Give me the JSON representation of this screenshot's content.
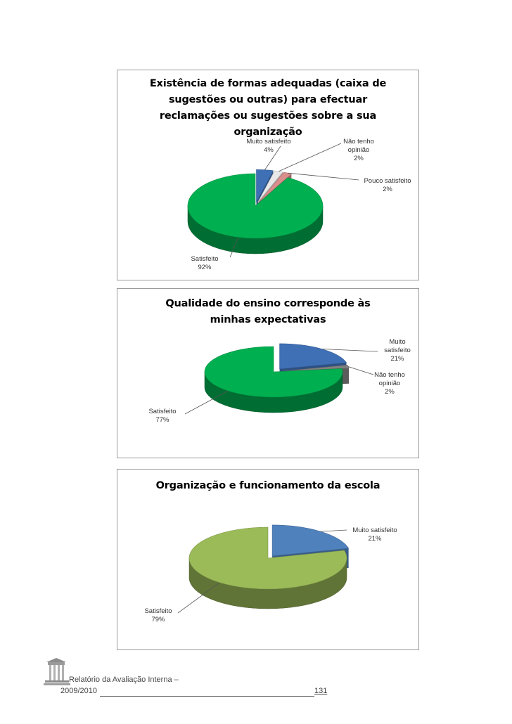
{
  "chart_data": [
    {
      "type": "pie",
      "title": "Existência de formas adequadas (caixa de sugestões ou outras) para efectuar reclamações ou sugestões sobre a sua organização",
      "slices": [
        {
          "name": "Muito satisfeito",
          "value": 4,
          "label": "4%",
          "color": "#3f6fb5"
        },
        {
          "name": "Não tenho opinião",
          "value": 2,
          "label": "2%",
          "color": "#e8e8e8"
        },
        {
          "name": "Pouco satisfeito",
          "value": 2,
          "label": "2%",
          "color": "#d98e8c"
        },
        {
          "name": "Satisfeito",
          "value": 92,
          "label": "92%",
          "color": "#00b050"
        }
      ]
    },
    {
      "type": "pie",
      "title": "Qualidade do ensino corresponde às minhas expectativas",
      "slices": [
        {
          "name": "Muito satisfeito",
          "value": 21,
          "label": "21%",
          "color": "#3f6fb5"
        },
        {
          "name": "Não tenho opinião",
          "value": 2,
          "label": "2%",
          "color": "#808080"
        },
        {
          "name": "Satisfeito",
          "value": 77,
          "label": "77%",
          "color": "#00b050"
        }
      ]
    },
    {
      "type": "pie",
      "title": "Organização e funcionamento da escola",
      "slices": [
        {
          "name": "Muito satisfeito",
          "value": 21,
          "label": "21%",
          "color": "#4f81bd"
        },
        {
          "name": "Satisfeito",
          "value": 79,
          "label": "79%",
          "color": "#9bbb59"
        }
      ]
    }
  ],
  "footer": {
    "line1": "Relatório da Avaliação Interna –",
    "line2": "2009/2010",
    "page": "131"
  }
}
